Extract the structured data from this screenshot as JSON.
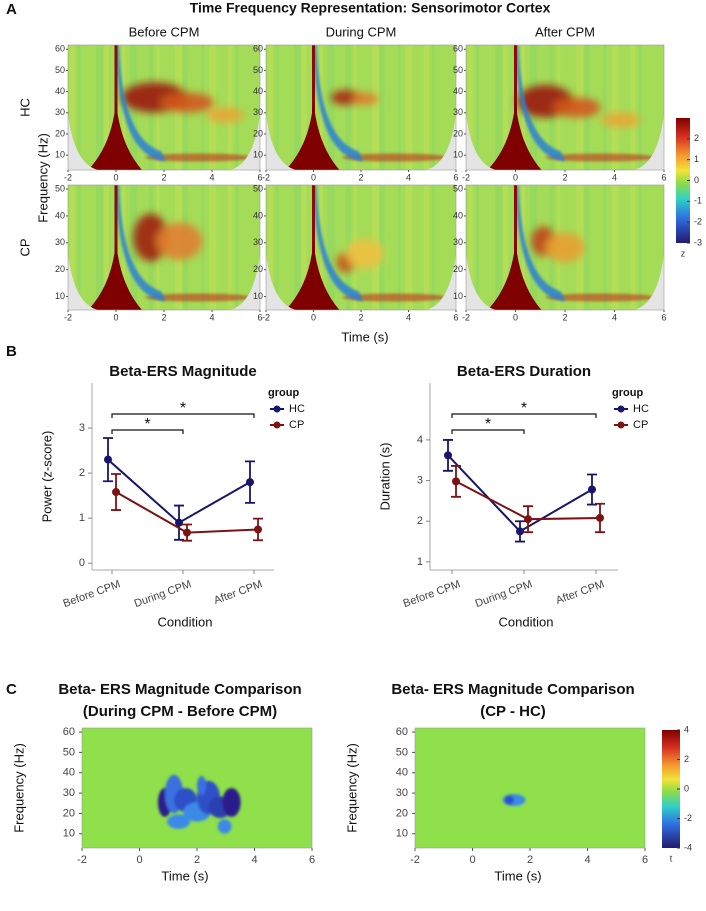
{
  "chart_data": [
    {
      "type": "heatmap-grid",
      "panel": "A",
      "title": "Time Frequency Representation: Sensorimotor Cortex",
      "columns": [
        "Before CPM",
        "During CPM",
        "After CPM"
      ],
      "rows": [
        {
          "label": "HC",
          "ylim": [
            3,
            62
          ],
          "yticks": [
            10,
            20,
            30,
            40,
            50,
            60
          ]
        },
        {
          "label": "CP",
          "ylim": [
            5,
            51.5
          ],
          "yticks": [
            10,
            20,
            30,
            40,
            50
          ]
        }
      ],
      "xlabel": "Time (s)",
      "ylabel": "Frequency (Hz)",
      "xlim": [
        -2,
        6
      ],
      "xticks": [
        -2,
        0,
        2,
        4,
        6
      ],
      "colorbar": {
        "label": "z",
        "clim": [
          -3,
          3
        ],
        "ticks": [
          -3,
          -2,
          -1,
          0,
          1,
          2
        ]
      }
    },
    {
      "type": "line",
      "panel": "B",
      "title": "Beta-ERS Magnitude",
      "xlabel": "Condition",
      "ylabel": "Power (z-score)",
      "categories": [
        "Before CPM",
        "During CPM",
        "After CPM"
      ],
      "ylim": [
        -0.15,
        4
      ],
      "yticks": [
        0,
        1,
        2,
        3
      ],
      "legend_title": "group",
      "series": [
        {
          "name": "HC",
          "color": "#16166b",
          "values": [
            2.3,
            0.9,
            1.8
          ],
          "errors": [
            0.48,
            0.38,
            0.46
          ]
        },
        {
          "name": "CP",
          "color": "#7b1214",
          "values": [
            1.58,
            0.68,
            0.75
          ],
          "errors": [
            0.4,
            0.18,
            0.24
          ]
        }
      ],
      "significance": [
        {
          "label": "*",
          "between": [
            "Before CPM",
            "During CPM"
          ]
        },
        {
          "label": "*",
          "between": [
            "Before CPM",
            "After CPM"
          ]
        }
      ]
    },
    {
      "type": "line",
      "title": "Beta-ERS Duration",
      "xlabel": "Condition",
      "ylabel": "Duration (s)",
      "categories": [
        "Before CPM",
        "During CPM",
        "After CPM"
      ],
      "ylim": [
        0.8,
        5.4
      ],
      "yticks": [
        1,
        2,
        3,
        4
      ],
      "legend_title": "group",
      "series": [
        {
          "name": "HC",
          "color": "#16166b",
          "values": [
            3.62,
            1.75,
            2.78
          ],
          "errors": [
            0.38,
            0.25,
            0.37
          ]
        },
        {
          "name": "CP",
          "color": "#7b1214",
          "values": [
            2.98,
            2.05,
            2.08
          ],
          "errors": [
            0.38,
            0.32,
            0.35
          ]
        }
      ],
      "significance": [
        {
          "label": "*",
          "between": [
            "Before CPM",
            "During CPM"
          ]
        },
        {
          "label": "*",
          "between": [
            "Before CPM",
            "After CPM"
          ]
        }
      ]
    },
    {
      "type": "heatmap",
      "panel": "C",
      "title": "Beta- ERS Magnitude Comparison",
      "subtitle": "(During CPM - Before CPM)",
      "xlabel": "Time (s)",
      "ylabel": "Frequency (Hz)",
      "xlim": [
        -2,
        6
      ],
      "xticks": [
        -2,
        0,
        2,
        4,
        6
      ],
      "ylim": [
        3,
        62
      ],
      "yticks": [
        10,
        20,
        30,
        40,
        50,
        60
      ]
    },
    {
      "type": "heatmap",
      "title": "Beta- ERS Magnitude Comparison",
      "subtitle": "(CP - HC)",
      "xlabel": "Time (s)",
      "ylabel": "Frequency (Hz)",
      "xlim": [
        -2,
        6
      ],
      "xticks": [
        -2,
        0,
        2,
        4,
        6
      ],
      "ylim": [
        3,
        62
      ],
      "yticks": [
        10,
        20,
        30,
        40,
        50,
        60
      ],
      "colorbar": {
        "label": "t",
        "clim": [
          -4,
          4
        ],
        "ticks": [
          -4,
          -2,
          0,
          2,
          4
        ]
      }
    }
  ]
}
